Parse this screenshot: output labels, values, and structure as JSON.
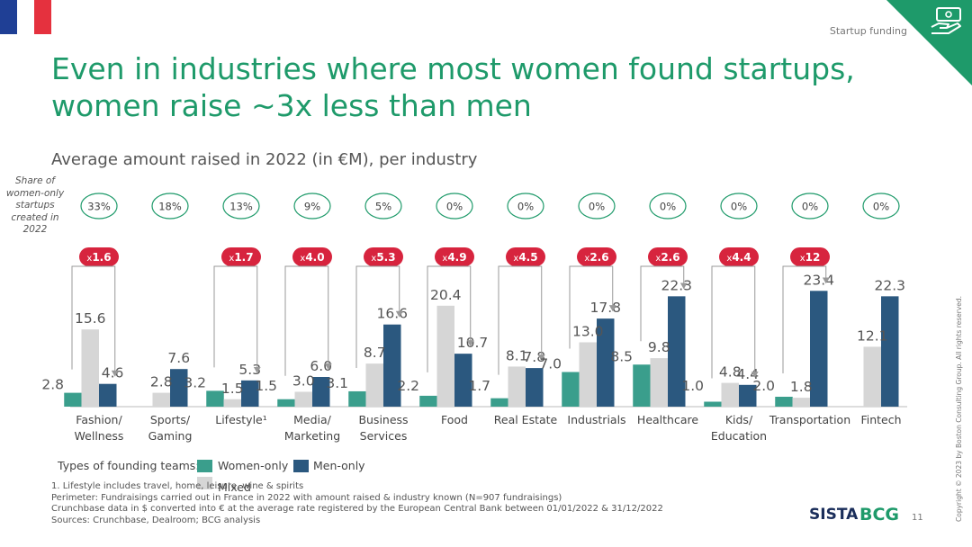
{
  "header": {
    "section": "Startup funding",
    "title": "Even in industries where most women found startups, women raise ~3x less than men",
    "subtitle": "Average amount raised in 2022 (in €M), per industry",
    "share_label": "Share of women-only startups created in 2022"
  },
  "colors": {
    "women": "#3a9e8c",
    "mixed": "#d6d6d6",
    "men": "#2b587f",
    "multiplier": "#d7243e",
    "share_border": "#1e9a6a",
    "title": "#1e9a6a"
  },
  "chart_data": {
    "type": "bar",
    "categories": [
      [
        "Fashion/",
        "Wellness"
      ],
      [
        "Sports/",
        "Gaming"
      ],
      [
        "Lifestyle¹"
      ],
      [
        "Media/",
        "Marketing"
      ],
      [
        "Business",
        "Services"
      ],
      [
        "Food"
      ],
      [
        "Real Estate"
      ],
      [
        "Industrials"
      ],
      [
        "Healthcare"
      ],
      [
        "Kids/",
        "Education"
      ],
      [
        "Transportation"
      ],
      [
        "Fintech"
      ]
    ],
    "series": [
      {
        "name": "Women-only",
        "values": [
          2.8,
          null,
          3.2,
          1.5,
          3.1,
          2.2,
          1.7,
          7.0,
          8.5,
          1.0,
          2.0,
          null
        ]
      },
      {
        "name": "Mixed",
        "values": [
          15.6,
          2.8,
          1.5,
          3.0,
          8.7,
          20.4,
          8.1,
          13.0,
          9.8,
          4.8,
          1.8,
          12.1
        ]
      },
      {
        "name": "Men-only",
        "values": [
          4.6,
          7.6,
          5.3,
          6.0,
          16.6,
          10.7,
          7.8,
          17.8,
          22.3,
          4.4,
          23.4,
          22.3
        ]
      }
    ],
    "value_labels": {
      "women": [
        "2.8",
        "",
        "3.2",
        "1.5",
        "3.1",
        "2.2",
        "1.7",
        "7.0",
        "8.5",
        "1.0",
        "2.0",
        ""
      ],
      "mixed": [
        "15.6",
        "2.8",
        "1.5",
        "3.0",
        "8.7",
        "20.4",
        "8.1",
        "13.0",
        "9.8",
        "4.8",
        "1.8",
        "12.1"
      ],
      "men": [
        "4.6",
        "7.6",
        "5.3",
        "6.0",
        "16.6",
        "10.7",
        "7.8",
        "17.8",
        "22.3",
        "4.4",
        "23.4",
        "22.3"
      ]
    },
    "share_women_only": [
      "33%",
      "18%",
      "13%",
      "9%",
      "5%",
      "0%",
      "0%",
      "0%",
      "0%",
      "0%",
      "0%",
      "0%"
    ],
    "multipliers": [
      "1.6",
      null,
      "1.7",
      "4.0",
      "5.3",
      "4.9",
      "4.5",
      "2.6",
      "2.6",
      "4.4",
      "12",
      null
    ],
    "multiplier_prefix": "x",
    "ylim": [
      0,
      25
    ],
    "grid": false
  },
  "legend": {
    "title": "Types of founding teams:",
    "women": "Women-only",
    "men": "Men-only",
    "mixed": "Mixed"
  },
  "footnotes": [
    "1. Lifestyle includes travel, home, leisure, wine & spirits",
    "Perimeter: Fundraisings carried out in France in 2022 with amount raised & industry known (N=907 fundraisings)",
    "Crunchbase data in $ converted into € at the average rate registered by the European Central Bank between 01/01/2022 & 31/12/2022",
    "Sources: Crunchbase, Dealroom; BCG analysis"
  ],
  "footer": {
    "logo_sista": "SISTA",
    "logo_bcg": "BCG",
    "page_number": "11",
    "copyright": "Copyright © 2023 by Boston Consulting Group. All rights reserved."
  }
}
